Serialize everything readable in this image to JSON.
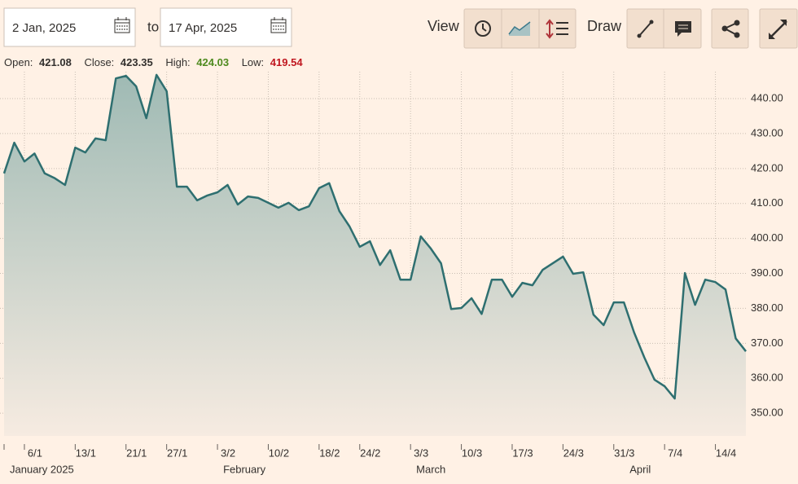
{
  "toolbar": {
    "from_date": "2 Jan, 2025",
    "to_label": "to",
    "to_date": "17 Apr, 2025",
    "view_label": "View",
    "draw_label": "Draw"
  },
  "stats": {
    "open_label": "Open:",
    "open": 421.08,
    "close_label": "Close:",
    "close": 423.35,
    "high_label": "High:",
    "high": 424.03,
    "low_label": "Low:",
    "low": 419.54
  },
  "chart_data": {
    "type": "area",
    "color": "#2e6f70",
    "x": [
      "2025-01-02",
      "2025-01-03",
      "2025-01-06",
      "2025-01-07",
      "2025-01-08",
      "2025-01-09",
      "2025-01-10",
      "2025-01-13",
      "2025-01-14",
      "2025-01-15",
      "2025-01-16",
      "2025-01-17",
      "2025-01-21",
      "2025-01-22",
      "2025-01-23",
      "2025-01-24",
      "2025-01-27",
      "2025-01-28",
      "2025-01-29",
      "2025-01-30",
      "2025-01-31",
      "2025-02-03",
      "2025-02-04",
      "2025-02-05",
      "2025-02-06",
      "2025-02-07",
      "2025-02-10",
      "2025-02-11",
      "2025-02-12",
      "2025-02-13",
      "2025-02-14",
      "2025-02-18",
      "2025-02-19",
      "2025-02-20",
      "2025-02-21",
      "2025-02-24",
      "2025-02-25",
      "2025-02-26",
      "2025-02-27",
      "2025-02-28",
      "2025-03-03",
      "2025-03-04",
      "2025-03-05",
      "2025-03-06",
      "2025-03-07",
      "2025-03-10",
      "2025-03-11",
      "2025-03-12",
      "2025-03-13",
      "2025-03-14",
      "2025-03-17",
      "2025-03-18",
      "2025-03-19",
      "2025-03-20",
      "2025-03-21",
      "2025-03-24",
      "2025-03-25",
      "2025-03-26",
      "2025-03-27",
      "2025-03-28",
      "2025-03-31",
      "2025-04-01",
      "2025-04-02",
      "2025-04-03",
      "2025-04-04",
      "2025-04-07",
      "2025-04-08",
      "2025-04-09",
      "2025-04-10",
      "2025-04-11",
      "2025-04-14",
      "2025-04-15",
      "2025-04-16",
      "2025-04-17"
    ],
    "values": [
      418.6,
      427.4,
      422,
      424.3,
      418.6,
      417.2,
      415.3,
      426,
      424.6,
      428.6,
      428.1,
      445.8,
      446.5,
      443.5,
      434.4,
      446.8,
      442.1,
      414.8,
      414.8,
      410.9,
      412.3,
      413.2,
      415.3,
      409.7,
      412,
      411.6,
      410.2,
      408.8,
      410.2,
      408.1,
      409.2,
      414.4,
      415.8,
      407.8,
      403.4,
      397.6,
      399.2,
      392.4,
      396.6,
      388.2,
      388.2,
      400.6,
      397.1,
      392.9,
      379.8,
      380.1,
      382.9,
      378.4,
      388.2,
      388.2,
      383.3,
      387.3,
      386.6,
      391,
      392.9,
      394.8,
      389.9,
      390.3,
      378.2,
      375.2,
      381.7,
      381.7,
      373.1,
      366,
      359.6,
      357.7,
      354.2,
      390.1,
      381,
      388.2,
      387.5,
      385.4,
      371.4,
      367.7
    ],
    "ylim": [
      343.5,
      447.7
    ],
    "yticks": [
      {
        "value": 350,
        "label": "350.00"
      },
      {
        "value": 360,
        "label": "360.00"
      },
      {
        "value": 370,
        "label": "370.00"
      },
      {
        "value": 380,
        "label": "380.00"
      },
      {
        "value": 390,
        "label": "390.00"
      },
      {
        "value": 400,
        "label": "400.00"
      },
      {
        "value": 410,
        "label": "410.00"
      },
      {
        "value": 420,
        "label": "420.00"
      },
      {
        "value": 430,
        "label": "430.00"
      },
      {
        "value": 440,
        "label": "440.00"
      }
    ],
    "xticks": [
      {
        "value": "2025-01-06",
        "label": "6/1"
      },
      {
        "value": "2025-01-13",
        "label": "13/1"
      },
      {
        "value": "2025-01-21",
        "label": "21/1"
      },
      {
        "value": "2025-01-27",
        "label": "27/1"
      },
      {
        "value": "2025-02-03",
        "label": "3/2"
      },
      {
        "value": "2025-02-10",
        "label": "10/2"
      },
      {
        "value": "2025-02-18",
        "label": "18/2"
      },
      {
        "value": "2025-02-24",
        "label": "24/2"
      },
      {
        "value": "2025-03-03",
        "label": "3/3"
      },
      {
        "value": "2025-03-10",
        "label": "10/3"
      },
      {
        "value": "2025-03-17",
        "label": "17/3"
      },
      {
        "value": "2025-03-24",
        "label": "24/3"
      },
      {
        "value": "2025-03-31",
        "label": "31/3"
      },
      {
        "value": "2025-04-07",
        "label": "7/4"
      },
      {
        "value": "2025-04-14",
        "label": "14/4"
      }
    ],
    "months": [
      {
        "value": "2025-01-02",
        "label": "January 2025"
      },
      {
        "value": "2025-02-03",
        "label": "February"
      },
      {
        "value": "2025-03-03",
        "label": "March"
      },
      {
        "value": "2025-04-01",
        "label": "April"
      }
    ],
    "grid": true
  }
}
